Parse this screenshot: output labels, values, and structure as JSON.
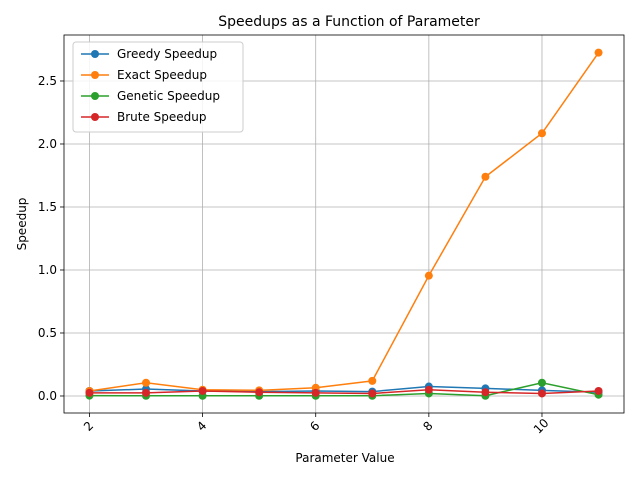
{
  "chart_data": {
    "type": "line",
    "title": "Speedups as a Function of Parameter",
    "xlabel": "Parameter Value",
    "ylabel": "Speedup",
    "xlim": [
      1.55,
      11.45
    ],
    "ylim": [
      -0.135,
      2.865
    ],
    "x_ticks": [
      2,
      4,
      6,
      8,
      10
    ],
    "y_ticks": [
      0.0,
      0.5,
      1.0,
      1.5,
      2.0,
      2.5
    ],
    "x_tick_labels": [
      "2",
      "4",
      "6",
      "8",
      "10"
    ],
    "y_tick_labels": [
      "0.0",
      "0.5",
      "1.0",
      "1.5",
      "2.0",
      "2.5"
    ],
    "grid": true,
    "legend_position": "top-left",
    "x": [
      2,
      3,
      4,
      5,
      6,
      7,
      8,
      9,
      10,
      11
    ],
    "series": [
      {
        "name": "Greedy Speedup",
        "color": "#1f77b4",
        "values": [
          0.04,
          0.055,
          0.04,
          0.035,
          0.04,
          0.035,
          0.075,
          0.06,
          0.045,
          0.03
        ]
      },
      {
        "name": "Exact Speedup",
        "color": "#ff7f0e",
        "values": [
          0.04,
          0.105,
          0.05,
          0.045,
          0.065,
          0.12,
          0.955,
          1.74,
          2.085,
          2.725
        ]
      },
      {
        "name": "Genetic Speedup",
        "color": "#2ca02c",
        "values": [
          0.003,
          0.002,
          0.002,
          0.002,
          0.002,
          0.002,
          0.02,
          0.002,
          0.105,
          0.01
        ]
      },
      {
        "name": "Brute Speedup",
        "color": "#d62728",
        "values": [
          0.025,
          0.025,
          0.04,
          0.03,
          0.025,
          0.02,
          0.05,
          0.03,
          0.02,
          0.04
        ]
      }
    ]
  }
}
